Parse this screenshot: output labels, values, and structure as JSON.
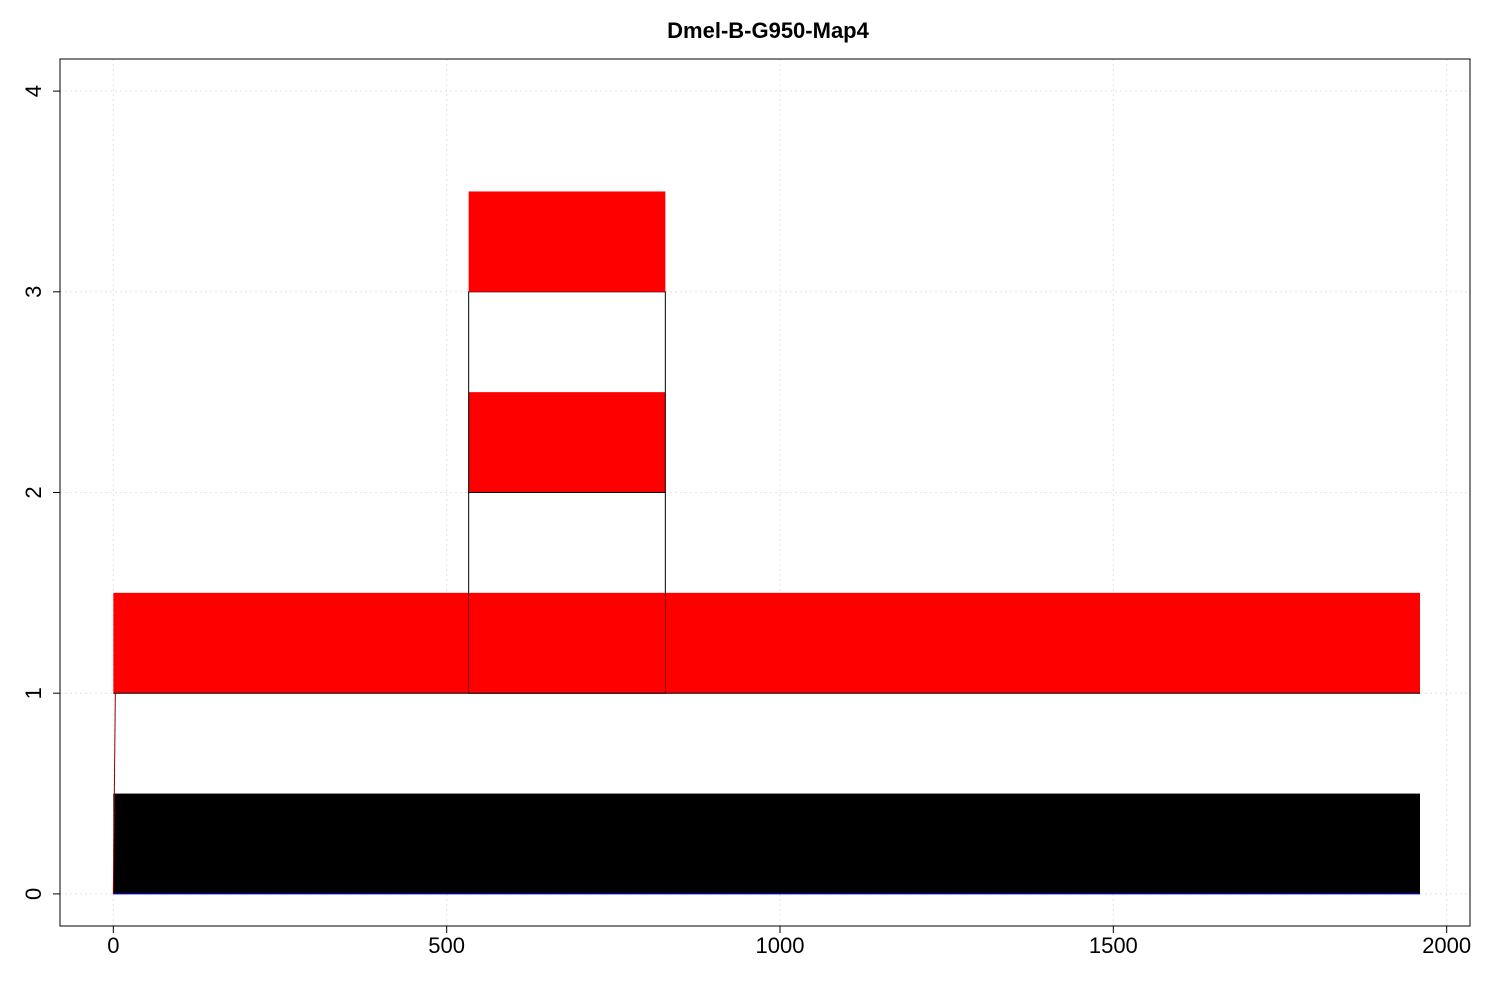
{
  "chart_data": {
    "type": "bar",
    "title": "Dmel-B-G950-Map4",
    "xlabel": "",
    "ylabel": "",
    "xlim": [
      -80,
      2035
    ],
    "ylim": [
      -0.16,
      4.16
    ],
    "x_ticks": [
      "0",
      "500",
      "1000",
      "1500",
      "2000"
    ],
    "y_ticks": [
      "0",
      "1",
      "2",
      "3",
      "4"
    ],
    "grid": true,
    "colors": {
      "black": "#000000",
      "red": "#ff0000",
      "white": "#ffffff",
      "grid": "#e4e4e4"
    },
    "segments": [
      {
        "x0": 0,
        "x1": 1960,
        "y0": 0,
        "y1": 0.5,
        "fill": "black"
      },
      {
        "x0": 0,
        "x1": 1960,
        "y0": 0.5,
        "y1": 1,
        "fill": "white"
      },
      {
        "x0": 0,
        "x1": 1960,
        "y0": 1,
        "y1": 1.5,
        "fill": "red"
      },
      {
        "x0": 533,
        "x1": 828,
        "y0": 1,
        "y1": 2,
        "fill": "white",
        "outline": true
      },
      {
        "x0": 533,
        "x1": 828,
        "y0": 1,
        "y1": 1.5,
        "fill": "red"
      },
      {
        "x0": 533,
        "x1": 828,
        "y0": 2,
        "y1": 2.5,
        "fill": "red"
      },
      {
        "x0": 533,
        "x1": 828,
        "y0": 2,
        "y1": 3,
        "fill": "none",
        "outline": true
      },
      {
        "x0": 533,
        "x1": 828,
        "y0": 3,
        "y1": 3.5,
        "fill": "red"
      }
    ],
    "lines": [
      {
        "points": [
          [
            0,
            0
          ],
          [
            1960,
            0
          ]
        ],
        "color": "#0000ff"
      },
      {
        "points": [
          [
            0,
            0
          ],
          [
            3,
            1
          ]
        ],
        "color": "#8b0000"
      },
      {
        "points": [
          [
            0,
            1
          ],
          [
            1960,
            1
          ]
        ],
        "color": "#000000"
      }
    ]
  }
}
